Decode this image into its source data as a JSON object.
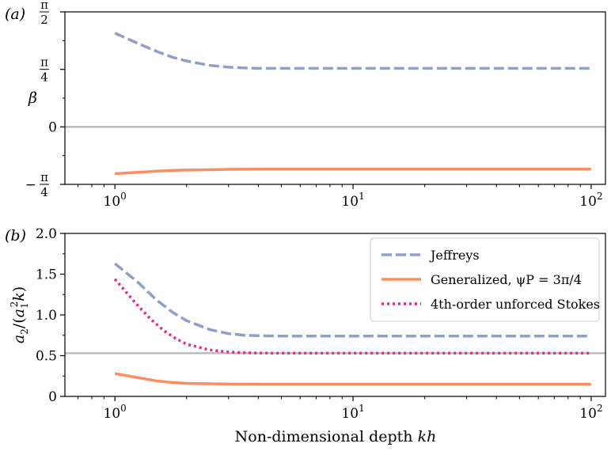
{
  "chart_data": [
    {
      "type": "line",
      "panel_label": "(a)",
      "xscale": "log",
      "xlim": [
        0.62,
        1.15
      ],
      "xticks": [
        {
          "value": 1,
          "base": "10",
          "exp": "0"
        },
        {
          "value": 10,
          "base": "10",
          "exp": "1"
        },
        {
          "value": 100,
          "base": "10",
          "exp": "2"
        }
      ],
      "ylabel": "β",
      "ylim": [
        -0.785398,
        1.570796
      ],
      "yticks": [
        {
          "value": 1.570796,
          "num": "π",
          "den": "2",
          "sign": ""
        },
        {
          "value": 0.785398,
          "num": "π",
          "den": "4",
          "sign": ""
        },
        {
          "value": 0,
          "text": "0"
        },
        {
          "value": -0.785398,
          "num": "π",
          "den": "4",
          "sign": "−"
        }
      ],
      "reference_line": {
        "y": 0,
        "color": "#bbbbbb"
      },
      "series": [
        {
          "key": "jeffreys",
          "color": "#8da0cb",
          "dash": "dashed",
          "x": [
            1,
            1.25,
            1.5,
            1.75,
            2,
            2.5,
            3,
            3.5,
            4,
            5,
            7,
            10,
            20,
            50,
            100
          ],
          "y": [
            1.28,
            1.14,
            1.03,
            0.95,
            0.9,
            0.84,
            0.815,
            0.805,
            0.8,
            0.8,
            0.8,
            0.8,
            0.8,
            0.8,
            0.8
          ]
        },
        {
          "key": "generalized",
          "color": "#fc8d62",
          "dash": "solid",
          "x": [
            1,
            1.25,
            1.5,
            1.75,
            2,
            2.5,
            3,
            4,
            5,
            10,
            20,
            50,
            100
          ],
          "y": [
            -0.64,
            -0.62,
            -0.605,
            -0.595,
            -0.59,
            -0.585,
            -0.58,
            -0.578,
            -0.578,
            -0.578,
            -0.578,
            -0.578,
            -0.578
          ]
        }
      ]
    },
    {
      "type": "line",
      "panel_label": "(b)",
      "xscale": "log",
      "xlabel": "Non-dimensional depth kh",
      "ylabel": "a2/(a1²k)",
      "ylim": [
        0,
        2.0
      ],
      "yticks": [
        {
          "value": 0,
          "text": "0"
        },
        {
          "value": 0.5,
          "text": "0.5"
        },
        {
          "value": 1.0,
          "text": "1.0"
        },
        {
          "value": 1.5,
          "text": "1.5"
        },
        {
          "value": 2.0,
          "text": "2.0"
        }
      ],
      "xticks": [
        {
          "value": 1,
          "base": "10",
          "exp": "0"
        },
        {
          "value": 10,
          "base": "10",
          "exp": "1"
        },
        {
          "value": 100,
          "base": "10",
          "exp": "2"
        }
      ],
      "reference_line": {
        "y": 0.53,
        "color": "#bbbbbb"
      },
      "legend_position": "top-right",
      "series": [
        {
          "key": "jeffreys",
          "name": "Jeffreys",
          "color": "#8da0cb",
          "dash": "dashed",
          "x": [
            1,
            1.25,
            1.5,
            1.75,
            2,
            2.5,
            3,
            3.5,
            4,
            5,
            7,
            10,
            20,
            50,
            100
          ],
          "y": [
            1.63,
            1.4,
            1.18,
            1.03,
            0.93,
            0.82,
            0.77,
            0.75,
            0.745,
            0.74,
            0.74,
            0.74,
            0.74,
            0.74,
            0.74
          ]
        },
        {
          "key": "generalized",
          "name": "Generalized, ψP = 3π/4",
          "color": "#fc8d62",
          "dash": "solid",
          "x": [
            1,
            1.25,
            1.5,
            1.75,
            2,
            2.5,
            3,
            4,
            5,
            10,
            20,
            50,
            100
          ],
          "y": [
            0.28,
            0.23,
            0.19,
            0.17,
            0.16,
            0.155,
            0.152,
            0.15,
            0.15,
            0.15,
            0.15,
            0.15,
            0.15
          ]
        },
        {
          "key": "stokes4",
          "name": "4th-order unforced Stokes",
          "color": "#e7298a",
          "dash": "dotted",
          "x": [
            1,
            1.2,
            1.4,
            1.6,
            1.8,
            2,
            2.5,
            3,
            3.5,
            4,
            5,
            10,
            20,
            50,
            100
          ],
          "y": [
            1.44,
            1.17,
            0.96,
            0.81,
            0.71,
            0.64,
            0.57,
            0.545,
            0.535,
            0.532,
            0.53,
            0.53,
            0.53,
            0.53,
            0.53
          ]
        }
      ]
    }
  ]
}
